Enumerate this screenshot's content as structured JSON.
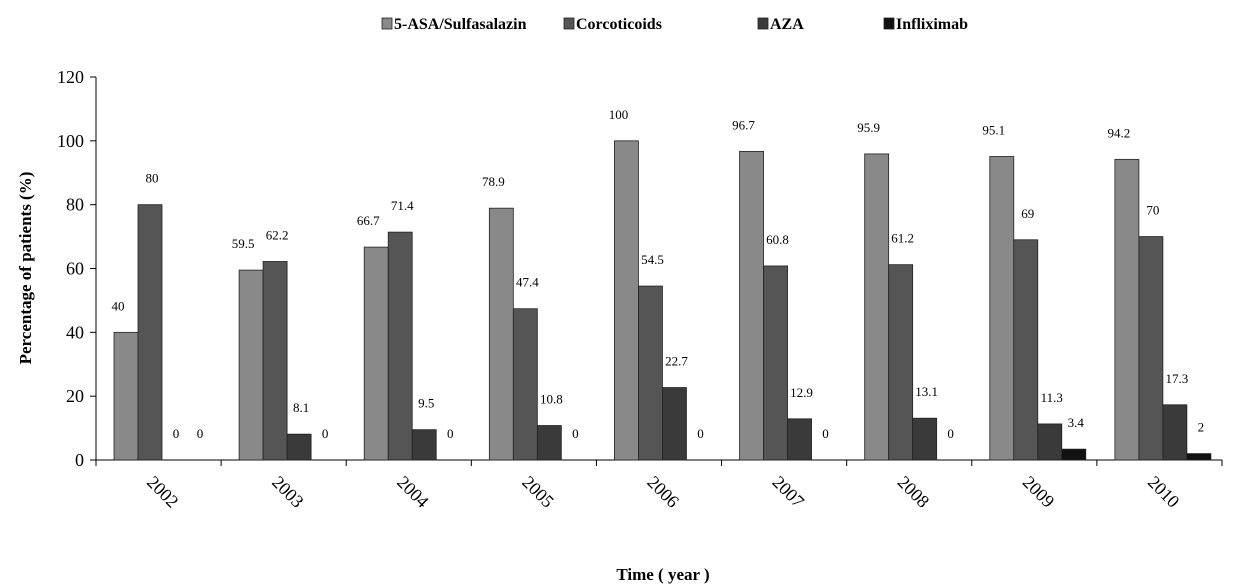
{
  "chart_data": {
    "type": "bar",
    "title": "",
    "xlabel": "Time ( year )",
    "ylabel": "Percentage of patients (%)",
    "ylim": [
      0,
      120
    ],
    "yticks": [
      0,
      20,
      40,
      60,
      80,
      100,
      120
    ],
    "grid": false,
    "legend_position": "top",
    "categories": [
      "2002",
      "2003",
      "2004",
      "2005",
      "2006",
      "2007",
      "2008",
      "2009",
      "2010"
    ],
    "series": [
      {
        "name": "5-ASA/Sulfasalazin",
        "color": "#898989",
        "values": [
          40,
          59.5,
          66.7,
          78.9,
          100,
          96.7,
          95.9,
          95.1,
          94.2
        ],
        "labels": [
          "40",
          "59.5",
          "66.7",
          "78.9",
          "100",
          "96.7",
          "95.9",
          "95.1",
          "94.2"
        ]
      },
      {
        "name": "Corcoticoids",
        "color": "#555555",
        "values": [
          80,
          62.2,
          71.4,
          47.4,
          54.5,
          60.8,
          61.2,
          69,
          70
        ],
        "labels": [
          "80",
          "62.2",
          "71.4",
          "47.4",
          "54.5",
          "60.8",
          "61.2",
          "69",
          "70"
        ]
      },
      {
        "name": "AZA",
        "color": "#3a3a3a",
        "values": [
          0,
          8.1,
          9.5,
          10.8,
          22.7,
          12.9,
          13.1,
          11.3,
          17.3
        ],
        "labels": [
          "0",
          "8.1",
          "9.5",
          "10.8",
          "22.7",
          "12.9",
          "13.1",
          "11.3",
          "17.3"
        ]
      },
      {
        "name": "Infliximab",
        "color": "#111111",
        "values": [
          0,
          0,
          0,
          0,
          0,
          0,
          0,
          3.4,
          2
        ],
        "labels": [
          "0",
          "0",
          "0",
          "0",
          "0",
          "0",
          "0",
          "3.4",
          "2"
        ]
      }
    ]
  }
}
